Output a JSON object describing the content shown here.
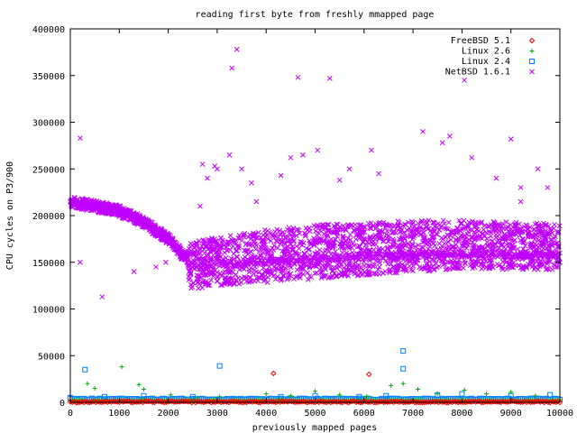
{
  "chart_data": {
    "type": "scatter",
    "title": "reading first byte from freshly mmapped page",
    "xlabel": "previously mapped pages",
    "ylabel": "CPU cycles on P3/900",
    "xlim": [
      0,
      10000
    ],
    "ylim": [
      0,
      400000
    ],
    "x_ticks": [
      0,
      1000,
      2000,
      3000,
      4000,
      5000,
      6000,
      7000,
      8000,
      9000,
      10000
    ],
    "y_ticks": [
      0,
      50000,
      100000,
      150000,
      200000,
      250000,
      300000,
      350000,
      400000
    ],
    "grid": false,
    "legend_position": "top-right",
    "series": [
      {
        "name": "FreeBSD 5.1",
        "marker": "diamond",
        "color": "#ff0000",
        "baseline": [
          [
            0,
            500
          ],
          [
            10000,
            500
          ]
        ],
        "points": [
          [
            4150,
            31000
          ],
          [
            6100,
            30000
          ]
        ]
      },
      {
        "name": "Linux 2.6",
        "marker": "plus",
        "color": "#00b000",
        "baseline": [
          [
            0,
            2000
          ],
          [
            10000,
            2000
          ]
        ],
        "points": [
          [
            350,
            20000
          ],
          [
            500,
            15000
          ],
          [
            1050,
            38000
          ],
          [
            1400,
            19000
          ],
          [
            1500,
            14000
          ],
          [
            2050,
            8000
          ],
          [
            2600,
            5000
          ],
          [
            3050,
            6000
          ],
          [
            4000,
            9000
          ],
          [
            4500,
            7000
          ],
          [
            5000,
            12000
          ],
          [
            5500,
            8000
          ],
          [
            6050,
            6000
          ],
          [
            6550,
            18000
          ],
          [
            6800,
            20000
          ],
          [
            7100,
            14000
          ],
          [
            7500,
            9000
          ],
          [
            8050,
            13000
          ],
          [
            8500,
            9000
          ],
          [
            9000,
            11000
          ],
          [
            9500,
            7000
          ]
        ]
      },
      {
        "name": "Linux 2.4",
        "marker": "square",
        "color": "#0080ff",
        "baseline": [
          [
            0,
            3500
          ],
          [
            10000,
            3500
          ]
        ],
        "points": [
          [
            0,
            5000
          ],
          [
            300,
            35000
          ],
          [
            700,
            6000
          ],
          [
            1500,
            7000
          ],
          [
            2500,
            6000
          ],
          [
            3050,
            39000
          ],
          [
            4300,
            6000
          ],
          [
            5000,
            7000
          ],
          [
            5900,
            6000
          ],
          [
            6450,
            7000
          ],
          [
            6800,
            55000
          ],
          [
            6800,
            36000
          ],
          [
            7500,
            8000
          ],
          [
            8000,
            9000
          ],
          [
            9000,
            7000
          ],
          [
            9800,
            8000
          ]
        ]
      },
      {
        "name": "NetBSD 1.6.1",
        "marker": "cross",
        "color": "#c000ff",
        "trend": [
          [
            0,
            215000
          ],
          [
            500,
            210000
          ],
          [
            1000,
            205000
          ],
          [
            1500,
            193000
          ],
          [
            2000,
            175000
          ],
          [
            2300,
            158000
          ],
          [
            2600,
            146000
          ],
          [
            3000,
            148000
          ],
          [
            4000,
            150000
          ],
          [
            5000,
            153000
          ],
          [
            6000,
            156000
          ],
          [
            7000,
            158000
          ],
          [
            8000,
            159000
          ],
          [
            9000,
            158000
          ],
          [
            10000,
            158000
          ]
        ],
        "band_low": [
          [
            2400,
            120000
          ],
          [
            3000,
            125000
          ],
          [
            4000,
            128000
          ],
          [
            5000,
            132000
          ],
          [
            6000,
            136000
          ],
          [
            7000,
            140000
          ],
          [
            8000,
            142000
          ],
          [
            9000,
            142000
          ],
          [
            10000,
            142000
          ]
        ],
        "band_high": [
          [
            2400,
            170000
          ],
          [
            3000,
            178000
          ],
          [
            4000,
            185000
          ],
          [
            5000,
            190000
          ],
          [
            6000,
            192000
          ],
          [
            7000,
            195000
          ],
          [
            8000,
            195000
          ],
          [
            9000,
            193000
          ],
          [
            10000,
            192000
          ]
        ],
        "points": [
          [
            200,
            283000
          ],
          [
            200,
            150000
          ],
          [
            650,
            113000
          ],
          [
            1300,
            140000
          ],
          [
            1750,
            145000
          ],
          [
            1950,
            150000
          ],
          [
            2650,
            210000
          ],
          [
            2700,
            255000
          ],
          [
            2950,
            253000
          ],
          [
            3000,
            250000
          ],
          [
            3300,
            358000
          ],
          [
            3400,
            378000
          ],
          [
            3500,
            250000
          ],
          [
            3700,
            235000
          ],
          [
            4300,
            243000
          ],
          [
            4500,
            262000
          ],
          [
            4650,
            348000
          ],
          [
            4750,
            265000
          ],
          [
            5050,
            270000
          ],
          [
            5300,
            347000
          ],
          [
            5500,
            238000
          ],
          [
            6150,
            270000
          ],
          [
            6300,
            245000
          ],
          [
            7200,
            290000
          ],
          [
            7600,
            278000
          ],
          [
            7750,
            285000
          ],
          [
            8050,
            345000
          ],
          [
            8200,
            262000
          ],
          [
            9000,
            282000
          ],
          [
            9200,
            230000
          ],
          [
            9550,
            250000
          ],
          [
            9750,
            230000
          ],
          [
            9200,
            215000
          ],
          [
            8700,
            240000
          ],
          [
            5700,
            250000
          ],
          [
            3800,
            215000
          ],
          [
            2800,
            240000
          ],
          [
            3250,
            265000
          ]
        ]
      }
    ]
  }
}
